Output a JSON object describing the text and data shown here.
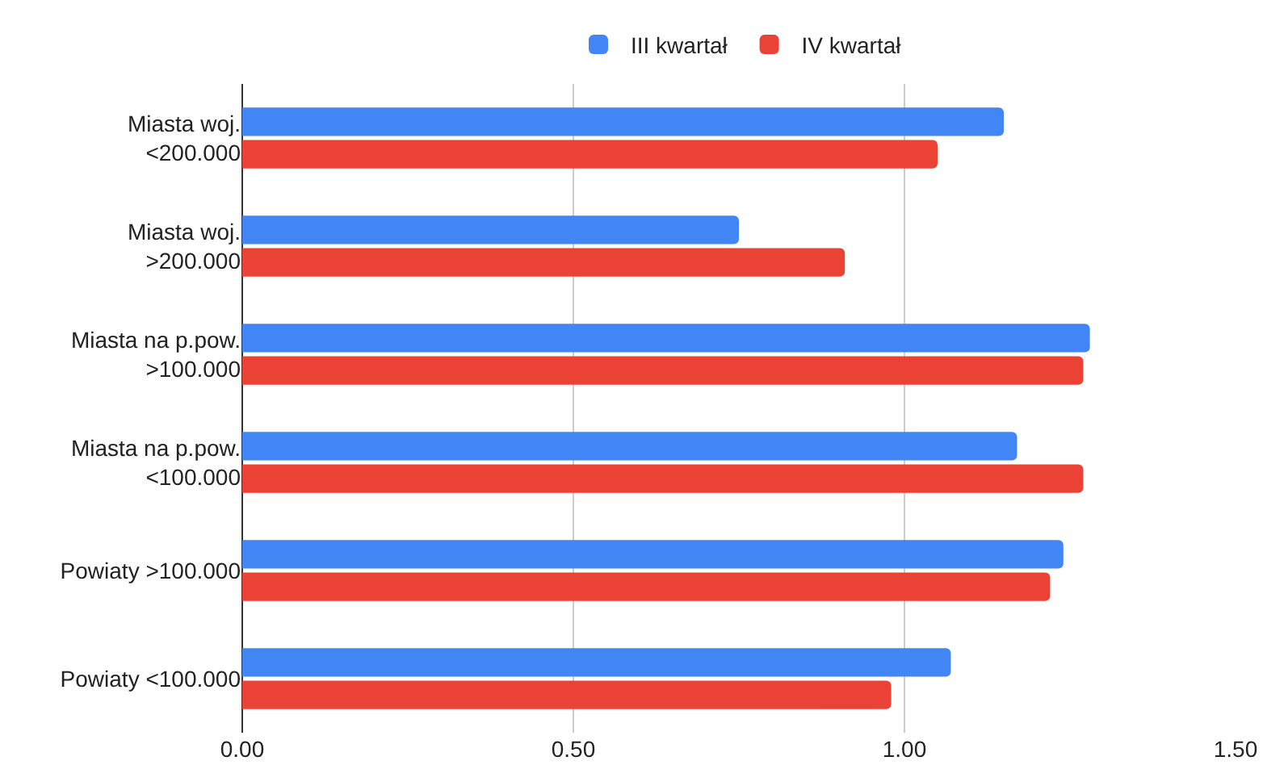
{
  "chart_data": {
    "type": "bar",
    "orientation": "horizontal",
    "categories": [
      "Miasta woj. <200.000",
      "Miasta woj. >200.000",
      "Miasta na p.pow. >100.000",
      "Miasta na p.pow. <100.000",
      "Powiaty >100.000",
      "Powiaty <100.000"
    ],
    "series": [
      {
        "name": "III kwartał",
        "color": "#4285f4",
        "values": [
          1.15,
          0.75,
          1.28,
          1.17,
          1.24,
          1.07
        ]
      },
      {
        "name": "IV kwartał",
        "color": "#ea4335",
        "values": [
          1.05,
          0.91,
          1.27,
          1.27,
          1.22,
          0.98
        ]
      }
    ],
    "xlim": [
      0,
      1.5
    ],
    "xticks": [
      {
        "value": 0,
        "label": "0.00"
      },
      {
        "value": 0.5,
        "label": "0.50"
      },
      {
        "value": 1,
        "label": "1.00"
      },
      {
        "value": 1.5,
        "label": "1.50"
      }
    ],
    "grid": "x",
    "legend": "top"
  }
}
